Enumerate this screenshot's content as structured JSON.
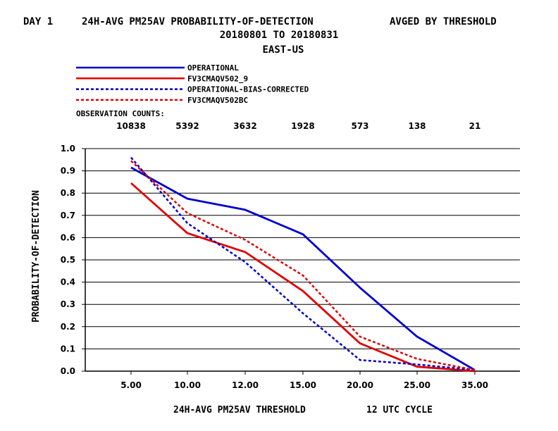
{
  "header": {
    "day_label": "DAY 1",
    "title": "24H-AVG PM25AV PROBABILITY-OF-DETECTION",
    "avg_label": "AVGED BY THRESHOLD",
    "date_range": "20180801 TO 20180831",
    "region": "EAST-US"
  },
  "counts": {
    "label": "OBSERVATION COUNTS:",
    "values": [
      "10838",
      "5392",
      "3632",
      "1928",
      "573",
      "138",
      "21"
    ]
  },
  "chart_data": {
    "type": "line",
    "title": "24H-AVG PM25AV PROBABILITY-OF-DETECTION",
    "xlabel": "24H-AVG PM25AV THRESHOLD",
    "xlabel_note": "12 UTC CYCLE",
    "ylabel": "PROBABILITY-OF-DETECTION",
    "categories": [
      "5.00",
      "10.00",
      "12.00",
      "15.00",
      "20.00",
      "25.00",
      "35.00"
    ],
    "y_ticks": [
      "0.0",
      "0.1",
      "0.2",
      "0.3",
      "0.4",
      "0.5",
      "0.6",
      "0.7",
      "0.8",
      "0.9",
      "1.0"
    ],
    "ylim": [
      0,
      1.0
    ],
    "grid": true,
    "legend_position": "top-left",
    "series": [
      {
        "name": "OPERATIONAL",
        "color": "#0000cc",
        "dashed": false,
        "values": [
          0.915,
          0.775,
          0.725,
          0.615,
          0.375,
          0.155,
          0.005
        ]
      },
      {
        "name": "FV3CMAQV502_9",
        "color": "#e00000",
        "dashed": false,
        "values": [
          0.845,
          0.62,
          0.535,
          0.36,
          0.125,
          0.02,
          0.0
        ]
      },
      {
        "name": "OPERATIONAL-BIAS-CORRECTED",
        "color": "#0000cc",
        "dashed": true,
        "values": [
          0.96,
          0.665,
          0.49,
          0.26,
          0.05,
          0.03,
          0.005
        ]
      },
      {
        "name": "FV3CMAQV502BC",
        "color": "#e00000",
        "dashed": true,
        "values": [
          0.945,
          0.71,
          0.59,
          0.43,
          0.155,
          0.055,
          0.005
        ]
      }
    ]
  }
}
